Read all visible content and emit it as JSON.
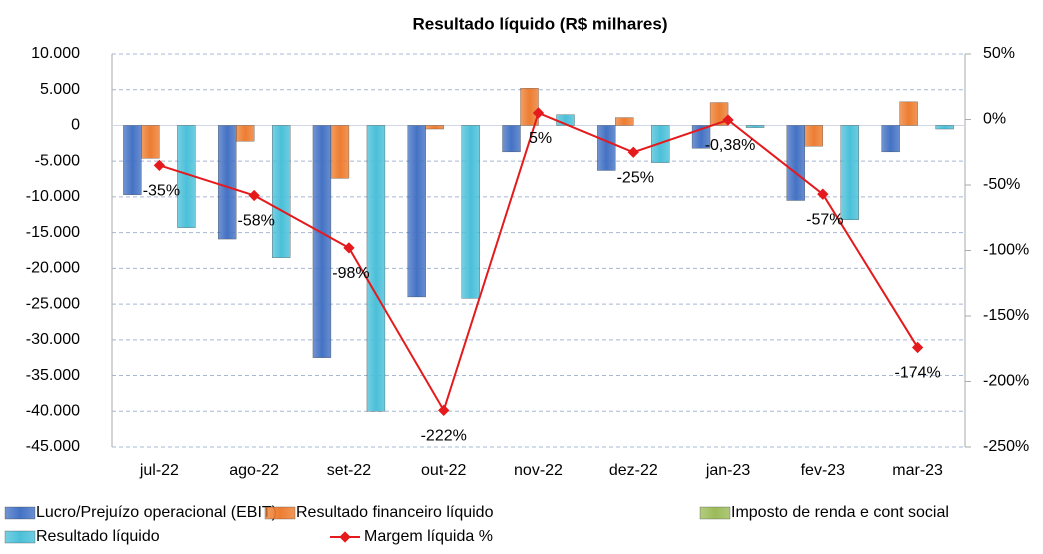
{
  "chart_data": {
    "type": "bar",
    "title": "Resultado líquido (R$ milhares)",
    "categories": [
      "jul-22",
      "ago-22",
      "set-22",
      "out-22",
      "nov-22",
      "dez-22",
      "jan-23",
      "fev-23",
      "mar-23"
    ],
    "series": [
      {
        "name": "Lucro/Prejuízo operacional (EBIT)",
        "color": "#4472c4",
        "values": [
          -9700,
          -15900,
          -32500,
          -24000,
          -3700,
          -6300,
          -3200,
          -10500,
          -3700
        ]
      },
      {
        "name": "Resultado financeiro líquido",
        "color": "#ed7d31",
        "values": [
          -4600,
          -2200,
          -7400,
          -500,
          5200,
          1100,
          3200,
          -2900,
          3300
        ]
      },
      {
        "name": "Imposto de renda e cont social",
        "color": "#9bbb59",
        "values": [
          0,
          0,
          0,
          0,
          0,
          0,
          0,
          0,
          0
        ]
      },
      {
        "name": "Resultado líquido",
        "color": "#4bc0d9",
        "values": [
          -14300,
          -18500,
          -40000,
          -24200,
          1500,
          -5200,
          -300,
          -13200,
          -500
        ]
      },
      {
        "name": "Margem líquida %",
        "color": "#e41a1c",
        "type": "line",
        "axis": "y2",
        "values": [
          -35,
          -58,
          -98,
          -222,
          5,
          -25,
          -0.38,
          -57,
          -174
        ],
        "value_labels": [
          "-35%",
          "-58%",
          "-98%",
          "-222%",
          "5%",
          "-25%",
          "-0,38%",
          "-57%",
          "-174%"
        ]
      }
    ],
    "ylim": [
      -45000,
      10000
    ],
    "yticks": [
      {
        "value": 10000,
        "label": "10.000"
      },
      {
        "value": 5000,
        "label": "5.000"
      },
      0,
      {
        "value": -5000,
        "label": "-5.000"
      },
      {
        "value": -10000,
        "label": "-10.000"
      },
      {
        "value": -15000,
        "label": "-15.000"
      },
      {
        "value": -20000,
        "label": "-20.000"
      },
      {
        "value": -25000,
        "label": "-25.000"
      },
      {
        "value": -30000,
        "label": "-30.000"
      },
      {
        "value": -35000,
        "label": "-35.000"
      },
      {
        "value": -40000,
        "label": "-40.000"
      },
      {
        "value": -45000,
        "label": "-45.000"
      }
    ],
    "y2lim": [
      -250,
      50
    ],
    "y2ticks": [
      {
        "value": 50,
        "label": "50%"
      },
      {
        "value": 0,
        "label": "0%"
      },
      {
        "value": -50,
        "label": "-50%"
      },
      {
        "value": -100,
        "label": "-100%"
      },
      {
        "value": -150,
        "label": "-150%"
      },
      {
        "value": -200,
        "label": "-200%"
      },
      {
        "value": -250,
        "label": "-250%"
      }
    ],
    "grid": true,
    "legend": "bottom"
  }
}
